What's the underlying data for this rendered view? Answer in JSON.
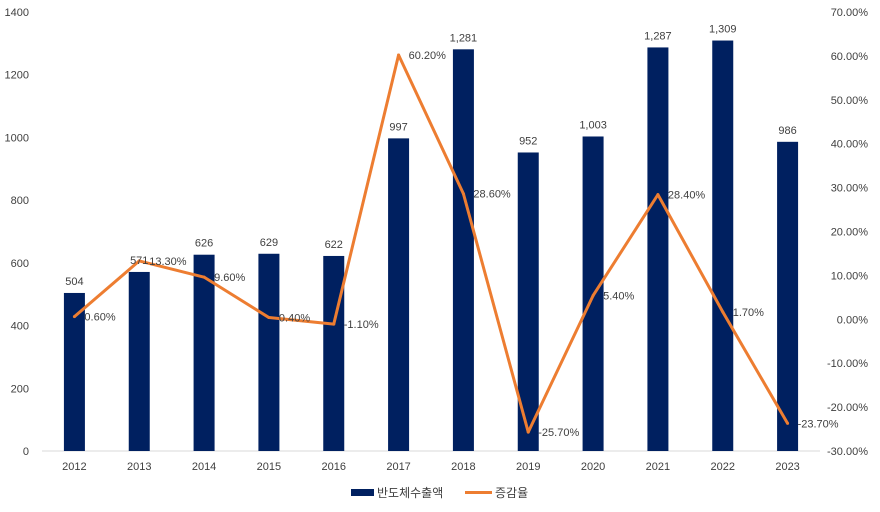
{
  "chart_data": {
    "type": "bar+line",
    "categories": [
      "2012",
      "2013",
      "2014",
      "2015",
      "2016",
      "2017",
      "2018",
      "2019",
      "2020",
      "2021",
      "2022",
      "2023"
    ],
    "series": [
      {
        "name": "반도체수출액",
        "type": "bar",
        "axis": "left",
        "color": "#002060",
        "values": [
          504,
          571,
          626,
          629,
          622,
          997,
          1281,
          952,
          1003,
          1287,
          1309,
          986
        ],
        "labels": [
          "504",
          "571",
          "626",
          "629",
          "622",
          "997",
          "1,281",
          "952",
          "1,003",
          "1,287",
          "1,309",
          "986"
        ]
      },
      {
        "name": "증감율",
        "type": "line",
        "axis": "right",
        "color": "#ED7D31",
        "values": [
          0.6,
          13.3,
          9.6,
          0.4,
          -1.1,
          60.2,
          28.6,
          -25.7,
          5.4,
          28.4,
          1.7,
          -23.7
        ],
        "labels": [
          "0.60%",
          "13.30%",
          "9.60%",
          "0.40%",
          "-1.10%",
          "60.20%",
          "28.60%",
          "-25.70%",
          "5.40%",
          "28.40%",
          "1.70%",
          "-23.70%"
        ]
      }
    ],
    "left_axis": {
      "range": [
        0,
        1400
      ],
      "ticks": [
        "0",
        "200",
        "400",
        "600",
        "800",
        "1000",
        "1200",
        "1400"
      ]
    },
    "right_axis": {
      "range": [
        -30,
        70
      ],
      "ticks": [
        "-30.00%",
        "-20.00%",
        "-10.00%",
        "0.00%",
        "10.00%",
        "20.00%",
        "30.00%",
        "40.00%",
        "50.00%",
        "60.00%",
        "70.00%"
      ]
    },
    "grid": false,
    "legend": {
      "position": "bottom",
      "entries": [
        "반도체수출액",
        "증감율"
      ]
    }
  }
}
